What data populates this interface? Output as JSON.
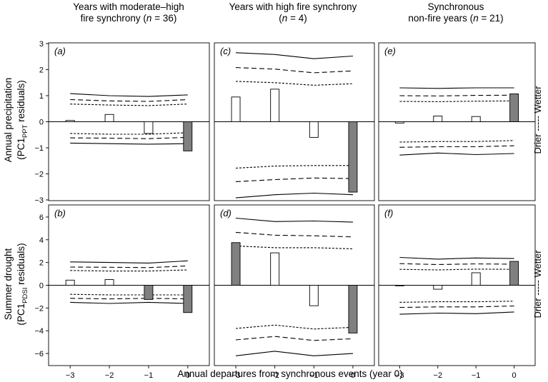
{
  "figure": {
    "columns": [
      {
        "line1": "Years with moderate–high",
        "line2": "fire synchrony (",
        "n_text": "n",
        "n_value": " = 36)"
      },
      {
        "line1": "Years with high fire synchrony",
        "line2": "(",
        "n_text": "n",
        "n_value": " = 4)"
      },
      {
        "line1": "Synchronous",
        "line2": "non-fire years (",
        "n_text": "n",
        "n_value": " = 21)"
      }
    ],
    "row_labels": [
      {
        "line1": "Annual precipitation",
        "line2_pre": "(PC1",
        "sub": "PPT",
        "line2_post": " residuals)"
      },
      {
        "line1": "Summer drought",
        "line2_pre": "(PC1",
        "sub": "PDSI",
        "line2_post": " residuals)"
      }
    ],
    "side_label": "Drier ----- Wetter",
    "x_axis_title": "Annual departures from synchronous events (year 0)",
    "colors": {
      "filled_bar": "#808080",
      "open_bar": "#ffffff",
      "line": "#000000"
    }
  },
  "chart_data": [
    {
      "panel": "(a)",
      "type": "bar",
      "row": "Annual precipitation",
      "column": "Years with moderate–high fire synchrony",
      "x": [
        -3,
        -2,
        -1,
        0
      ],
      "values": [
        0.05,
        0.28,
        -0.45,
        -1.12
      ],
      "filled": [
        false,
        false,
        false,
        true
      ],
      "ylim": [
        -3,
        3
      ],
      "yticks": [
        -3,
        -2,
        -1,
        0,
        1,
        2,
        3
      ],
      "bands": {
        "upper_outer": [
          1.08,
          1.0,
          0.97,
          1.03
        ],
        "upper_mid": [
          0.85,
          0.8,
          0.78,
          0.85
        ],
        "upper_inner": [
          0.68,
          0.64,
          0.62,
          0.68
        ],
        "lower_inner": [
          -0.45,
          -0.48,
          -0.48,
          -0.42
        ],
        "lower_mid": [
          -0.62,
          -0.63,
          -0.65,
          -0.6
        ],
        "lower_outer": [
          -0.82,
          -0.84,
          -0.86,
          -0.84
        ]
      }
    },
    {
      "panel": "(c)",
      "type": "bar",
      "row": "Annual precipitation",
      "column": "Years with high fire synchrony",
      "x": [
        -3,
        -2,
        -1,
        0
      ],
      "values": [
        0.95,
        1.25,
        -0.6,
        -2.7
      ],
      "filled": [
        false,
        false,
        false,
        true
      ],
      "ylim": [
        -3,
        3
      ],
      "yticks": [
        -3,
        -2,
        -1,
        0,
        1,
        2,
        3
      ],
      "bands": {
        "upper_outer": [
          2.65,
          2.58,
          2.42,
          2.52
        ],
        "upper_mid": [
          2.08,
          2.02,
          1.88,
          1.95
        ],
        "upper_inner": [
          1.55,
          1.5,
          1.4,
          1.46
        ],
        "lower_inner": [
          -1.78,
          -1.7,
          -1.68,
          -1.68
        ],
        "lower_mid": [
          -2.3,
          -2.22,
          -2.16,
          -2.18
        ],
        "lower_outer": [
          -2.92,
          -2.8,
          -2.74,
          -2.8
        ]
      }
    },
    {
      "panel": "(e)",
      "type": "bar",
      "row": "Annual precipitation",
      "column": "Synchronous non-fire years",
      "x": [
        -3,
        -2,
        -1,
        0
      ],
      "values": [
        -0.05,
        0.22,
        0.2,
        1.07
      ],
      "filled": [
        false,
        false,
        false,
        true
      ],
      "ylim": [
        -3,
        3
      ],
      "yticks": [
        -3,
        -2,
        -1,
        0,
        1,
        2,
        3
      ],
      "bands": {
        "upper_outer": [
          1.3,
          1.28,
          1.3,
          1.3
        ],
        "upper_mid": [
          1.0,
          0.99,
          1.01,
          1.02
        ],
        "upper_inner": [
          0.78,
          0.77,
          0.79,
          0.8
        ],
        "lower_inner": [
          -0.78,
          -0.76,
          -0.76,
          -0.72
        ],
        "lower_mid": [
          -0.98,
          -0.96,
          -0.96,
          -0.92
        ],
        "lower_outer": [
          -1.28,
          -1.2,
          -1.26,
          -1.22
        ]
      }
    },
    {
      "panel": "(b)",
      "type": "bar",
      "row": "Summer drought",
      "column": "Years with moderate–high fire synchrony",
      "x": [
        -3,
        -2,
        -1,
        0
      ],
      "values": [
        0.45,
        0.5,
        -1.25,
        -2.4
      ],
      "filled": [
        false,
        false,
        true,
        true
      ],
      "ylim": [
        -7,
        7
      ],
      "yticks": [
        -6,
        -4,
        -2,
        0,
        2,
        4,
        6
      ],
      "bands": {
        "upper_outer": [
          2.05,
          2.0,
          1.95,
          2.15
        ],
        "upper_mid": [
          1.6,
          1.58,
          1.55,
          1.7
        ],
        "upper_inner": [
          1.3,
          1.25,
          1.25,
          1.35
        ],
        "lower_inner": [
          -0.8,
          -0.85,
          -0.85,
          -0.85
        ],
        "lower_mid": [
          -1.15,
          -1.2,
          -1.15,
          -1.2
        ],
        "lower_outer": [
          -1.5,
          -1.6,
          -1.5,
          -1.6
        ]
      }
    },
    {
      "panel": "(d)",
      "type": "bar",
      "row": "Summer drought",
      "column": "Years with high fire synchrony",
      "x": [
        -3,
        -2,
        -1,
        0
      ],
      "values": [
        3.75,
        2.85,
        -1.8,
        -4.2
      ],
      "filled": [
        true,
        false,
        false,
        true
      ],
      "ylim": [
        -7,
        7
      ],
      "yticks": [
        -6,
        -4,
        -2,
        0,
        2,
        4,
        6
      ],
      "bands": {
        "upper_outer": [
          5.9,
          5.6,
          5.65,
          5.55
        ],
        "upper_mid": [
          4.65,
          4.4,
          4.35,
          4.25
        ],
        "upper_inner": [
          3.45,
          3.3,
          3.3,
          3.2
        ],
        "lower_inner": [
          -3.8,
          -3.5,
          -3.85,
          -3.7
        ],
        "lower_mid": [
          -4.8,
          -4.5,
          -4.85,
          -4.7
        ],
        "lower_outer": [
          -6.2,
          -5.8,
          -6.2,
          -6.0
        ]
      }
    },
    {
      "panel": "(f)",
      "type": "bar",
      "row": "Summer drought",
      "column": "Synchronous non-fire years",
      "x": [
        -3,
        -2,
        -1,
        0
      ],
      "values": [
        0.0,
        -0.35,
        1.1,
        2.1
      ],
      "filled": [
        false,
        false,
        false,
        true
      ],
      "ylim": [
        -7,
        7
      ],
      "yticks": [
        -6,
        -4,
        -2,
        0,
        2,
        4,
        6
      ],
      "bands": {
        "upper_outer": [
          2.45,
          2.3,
          2.4,
          2.35
        ],
        "upper_mid": [
          1.9,
          1.82,
          1.88,
          1.85
        ],
        "upper_inner": [
          1.4,
          1.35,
          1.42,
          1.4
        ],
        "lower_inner": [
          -1.5,
          -1.45,
          -1.45,
          -1.4
        ],
        "lower_mid": [
          -1.95,
          -1.9,
          -1.9,
          -1.82
        ],
        "lower_outer": [
          -2.55,
          -2.45,
          -2.5,
          -2.35
        ]
      }
    }
  ]
}
